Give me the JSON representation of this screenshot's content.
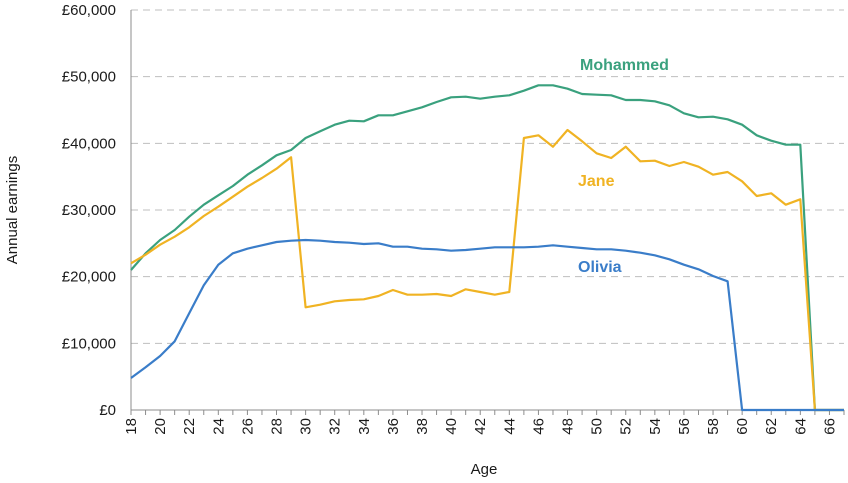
{
  "chart_data": {
    "type": "line",
    "xlabel": "Age",
    "ylabel": "Annual earnings",
    "xlim": [
      18,
      67
    ],
    "ylim": [
      0,
      60000
    ],
    "x_tick_values": [
      18,
      20,
      22,
      24,
      26,
      28,
      30,
      32,
      34,
      36,
      38,
      40,
      42,
      44,
      46,
      48,
      50,
      52,
      54,
      56,
      58,
      60,
      62,
      64,
      66
    ],
    "x_tick_labels": [
      "18",
      "20",
      "22",
      "24",
      "26",
      "28",
      "30",
      "32",
      "34",
      "36",
      "38",
      "40",
      "42",
      "44",
      "46",
      "48",
      "50",
      "52",
      "54",
      "56",
      "58",
      "60",
      "62",
      "64",
      "66"
    ],
    "y_tick_values": [
      0,
      10000,
      20000,
      30000,
      40000,
      50000,
      60000
    ],
    "y_tick_labels": [
      "£0",
      "£10,000",
      "£20,000",
      "£30,000",
      "£40,000",
      "£50,000",
      "£60,000"
    ],
    "grid": "horizontal dashed",
    "legend": "none (series names labelled directly on lines)",
    "x": [
      18,
      19,
      20,
      21,
      22,
      23,
      24,
      25,
      26,
      27,
      28,
      29,
      30,
      31,
      32,
      33,
      34,
      35,
      36,
      37,
      38,
      39,
      40,
      41,
      42,
      43,
      44,
      45,
      46,
      47,
      48,
      49,
      50,
      51,
      52,
      53,
      54,
      55,
      56,
      57,
      58,
      59,
      60,
      61,
      62,
      63,
      64,
      65,
      66,
      67
    ],
    "series": [
      {
        "name": "Mohammed",
        "color": "#3aa17e",
        "values": [
          21000,
          23500,
          25500,
          27000,
          29000,
          30800,
          32200,
          33600,
          35300,
          36700,
          38200,
          39000,
          40800,
          41800,
          42800,
          43400,
          43300,
          44200,
          44200,
          44800,
          45400,
          46200,
          46900,
          47000,
          46700,
          47000,
          47200,
          47900,
          48700,
          48700,
          48200,
          47400,
          47300,
          47200,
          46500,
          46500,
          46300,
          45700,
          44500,
          43900,
          44000,
          43600,
          42800,
          41200,
          40400,
          39800,
          39800,
          0,
          0,
          0
        ]
      },
      {
        "name": "Jane",
        "color": "#f0b323",
        "values": [
          22000,
          23300,
          24800,
          26000,
          27400,
          29100,
          30500,
          32000,
          33500,
          34800,
          36200,
          37900,
          15400,
          15800,
          16300,
          16500,
          16600,
          17100,
          18000,
          17300,
          17300,
          17400,
          17100,
          18100,
          17700,
          17300,
          17700,
          40800,
          41200,
          39500,
          42000,
          40300,
          38500,
          37800,
          39500,
          37300,
          37400,
          36600,
          37200,
          36500,
          35300,
          35700,
          34300,
          32100,
          32500,
          30800,
          31600,
          0,
          0,
          0
        ]
      },
      {
        "name": "Olivia",
        "color": "#3a7dc9",
        "values": [
          4800,
          6400,
          8100,
          10300,
          14500,
          18700,
          21800,
          23500,
          24200,
          24700,
          25200,
          25400,
          25500,
          25400,
          25200,
          25100,
          24900,
          25000,
          24500,
          24500,
          24200,
          24100,
          23900,
          24000,
          24200,
          24400,
          24400,
          24400,
          24500,
          24700,
          24500,
          24300,
          24100,
          24100,
          23900,
          23600,
          23200,
          22600,
          21800,
          21100,
          20100,
          19300,
          0,
          0,
          0,
          0,
          0,
          0,
          0,
          0
        ]
      }
    ]
  }
}
